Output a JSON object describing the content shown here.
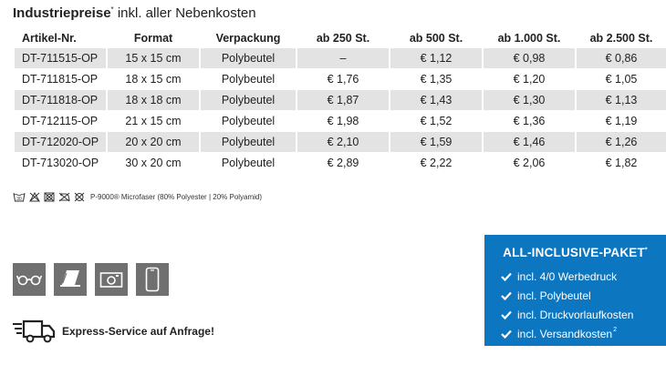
{
  "heading": {
    "bold": "Industriepreise",
    "sup": "*",
    "rest": " inkl. aller Nebenkosten"
  },
  "table": {
    "headers": [
      "Artikel-Nr.",
      "Format",
      "Verpackung",
      "ab 250 St.",
      "ab 500 St.",
      "ab 1.000 St.",
      "ab 2.500 St."
    ],
    "rows": [
      [
        "DT-711515-OP",
        "15 x 15 cm",
        "Polybeutel",
        "–",
        "€ 1,12",
        "€ 0,98",
        "€ 0,86"
      ],
      [
        "DT-711815-OP",
        "18 x 15 cm",
        "Polybeutel",
        "€ 1,76",
        "€ 1,35",
        "€ 1,20",
        "€ 1,05"
      ],
      [
        "DT-711818-OP",
        "18 x 18 cm",
        "Polybeutel",
        "€ 1,87",
        "€ 1,43",
        "€ 1,30",
        "€ 1,13"
      ],
      [
        "DT-712115-OP",
        "21 x 15 cm",
        "Polybeutel",
        "€ 1,98",
        "€ 1,52",
        "€ 1,36",
        "€ 1,19"
      ],
      [
        "DT-712020-OP",
        "20 x 20 cm",
        "Polybeutel",
        "€ 2,10",
        "€ 1,59",
        "€ 1,46",
        "€ 1,26"
      ],
      [
        "DT-713020-OP",
        "30 x 20 cm",
        "Polybeutel",
        "€ 2,89",
        "€ 2,22",
        "€ 2,06",
        "€ 1,82"
      ]
    ]
  },
  "care": {
    "temp": "30",
    "material": "P-9000® Microfaser (80% Polyester | 20% Polyamid)",
    "icons": [
      "wash-30-icon",
      "no-bleach-icon",
      "no-dryer-icon",
      "no-iron-icon",
      "no-dry-clean-icon"
    ]
  },
  "use_icons": [
    "glasses-icon",
    "laptop-icon",
    "camera-icon",
    "smartphone-icon"
  ],
  "express": {
    "label": "Express-Service auf Anfrage!",
    "icon": "delivery-truck-icon"
  },
  "panel": {
    "title": "ALL-INCLUSIVE-PAKET",
    "title_sup": "*",
    "items": [
      "incl. 4/0 Werbedruck",
      "incl. Polybeutel",
      "incl. Druckvorlaufkosten",
      "incl. Versandkosten"
    ],
    "last_sup": "2"
  },
  "colors": {
    "panel_bg": "#0d76c0",
    "row_alt": "#e3e3e3",
    "icon_box": "#707070"
  }
}
